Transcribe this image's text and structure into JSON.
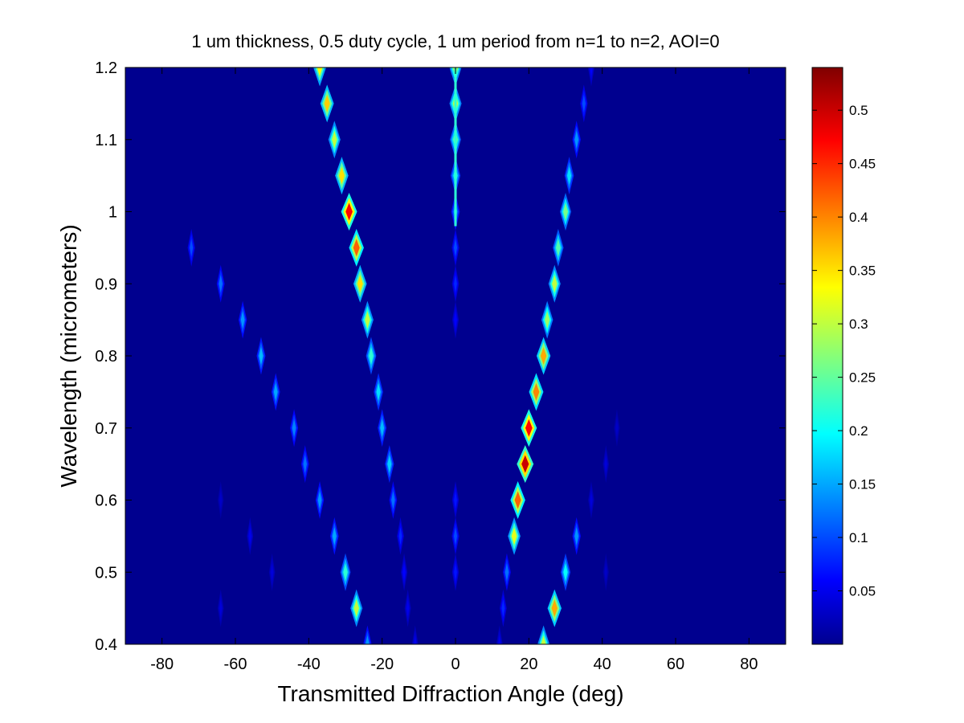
{
  "chart_data": {
    "type": "heatmap",
    "title": "1 um thickness, 0.5 duty cycle, 1 um period from n=1 to n=2, AOI=0",
    "xlabel": "Transmitted Diffraction Angle (deg)",
    "ylabel": "Wavelength (micrometers)",
    "xlim": [
      -90,
      90
    ],
    "ylim": [
      0.4,
      1.2
    ],
    "xticks": [
      -80,
      -60,
      -40,
      -20,
      0,
      20,
      40,
      60,
      80
    ],
    "yticks": [
      "0.4",
      "0.5",
      "0.6",
      "0.7",
      "0.8",
      "0.9",
      "1",
      "1.1",
      "1.2"
    ],
    "colorbar": {
      "colormap": "jet",
      "range": [
        0,
        0.54
      ],
      "ticks": [
        "0.05",
        "0.1",
        "0.15",
        "0.2",
        "0.25",
        "0.3",
        "0.35",
        "0.4",
        "0.45",
        "0.5"
      ]
    },
    "background_color": "#00008f",
    "series": [
      {
        "order": "0",
        "points": [
          {
            "wavelength": 1.2,
            "angle": 0,
            "value": 0.3
          },
          {
            "wavelength": 1.15,
            "angle": 0,
            "value": 0.3
          },
          {
            "wavelength": 1.1,
            "angle": 0,
            "value": 0.25
          },
          {
            "wavelength": 1.05,
            "angle": 0,
            "value": 0.2
          },
          {
            "wavelength": 1.0,
            "angle": 0,
            "value": 0.15
          },
          {
            "wavelength": 0.95,
            "angle": 0,
            "value": 0.1
          },
          {
            "wavelength": 0.9,
            "angle": 0,
            "value": 0.08
          },
          {
            "wavelength": 0.85,
            "angle": 0,
            "value": 0.06
          },
          {
            "wavelength": 0.6,
            "angle": 0,
            "value": 0.07
          },
          {
            "wavelength": 0.55,
            "angle": 0,
            "value": 0.1
          },
          {
            "wavelength": 0.5,
            "angle": 0,
            "value": 0.07
          }
        ]
      },
      {
        "order": "-1",
        "points": [
          {
            "wavelength": 1.2,
            "angle": -37,
            "value": 0.33
          },
          {
            "wavelength": 1.15,
            "angle": -35,
            "value": 0.36
          },
          {
            "wavelength": 1.1,
            "angle": -33,
            "value": 0.3
          },
          {
            "wavelength": 1.05,
            "angle": -31,
            "value": 0.35
          },
          {
            "wavelength": 1.0,
            "angle": -29,
            "value": 0.47
          },
          {
            "wavelength": 0.95,
            "angle": -27,
            "value": 0.42
          },
          {
            "wavelength": 0.9,
            "angle": -26,
            "value": 0.35
          },
          {
            "wavelength": 0.85,
            "angle": -24,
            "value": 0.3
          },
          {
            "wavelength": 0.8,
            "angle": -23,
            "value": 0.22
          },
          {
            "wavelength": 0.75,
            "angle": -21,
            "value": 0.18
          },
          {
            "wavelength": 0.7,
            "angle": -20,
            "value": 0.16
          },
          {
            "wavelength": 0.65,
            "angle": -18,
            "value": 0.17
          },
          {
            "wavelength": 0.6,
            "angle": -17,
            "value": 0.12
          },
          {
            "wavelength": 0.55,
            "angle": -15,
            "value": 0.08
          },
          {
            "wavelength": 0.5,
            "angle": -14,
            "value": 0.06
          },
          {
            "wavelength": 0.45,
            "angle": -13,
            "value": 0.05
          },
          {
            "wavelength": 0.4,
            "angle": -11,
            "value": 0.05
          }
        ]
      },
      {
        "order": "+1",
        "points": [
          {
            "wavelength": 1.2,
            "angle": 37,
            "value": 0.06
          },
          {
            "wavelength": 1.15,
            "angle": 35,
            "value": 0.1
          },
          {
            "wavelength": 1.1,
            "angle": 33,
            "value": 0.14
          },
          {
            "wavelength": 1.05,
            "angle": 31,
            "value": 0.18
          },
          {
            "wavelength": 1.0,
            "angle": 30,
            "value": 0.26
          },
          {
            "wavelength": 0.95,
            "angle": 28,
            "value": 0.24
          },
          {
            "wavelength": 0.9,
            "angle": 27,
            "value": 0.3
          },
          {
            "wavelength": 0.85,
            "angle": 25,
            "value": 0.28
          },
          {
            "wavelength": 0.8,
            "angle": 24,
            "value": 0.38
          },
          {
            "wavelength": 0.75,
            "angle": 22,
            "value": 0.4
          },
          {
            "wavelength": 0.7,
            "angle": 20,
            "value": 0.47
          },
          {
            "wavelength": 0.65,
            "angle": 19,
            "value": 0.5
          },
          {
            "wavelength": 0.6,
            "angle": 17,
            "value": 0.42
          },
          {
            "wavelength": 0.55,
            "angle": 16,
            "value": 0.32
          },
          {
            "wavelength": 0.5,
            "angle": 14,
            "value": 0.12
          },
          {
            "wavelength": 0.45,
            "angle": 13,
            "value": 0.08
          },
          {
            "wavelength": 0.4,
            "angle": 12,
            "value": 0.05
          }
        ]
      },
      {
        "order": "-2",
        "points": [
          {
            "wavelength": 0.95,
            "angle": -72,
            "value": 0.1
          },
          {
            "wavelength": 0.9,
            "angle": -64,
            "value": 0.12
          },
          {
            "wavelength": 0.85,
            "angle": -58,
            "value": 0.14
          },
          {
            "wavelength": 0.8,
            "angle": -53,
            "value": 0.16
          },
          {
            "wavelength": 0.75,
            "angle": -49,
            "value": 0.15
          },
          {
            "wavelength": 0.7,
            "angle": -44,
            "value": 0.13
          },
          {
            "wavelength": 0.65,
            "angle": -41,
            "value": 0.12
          },
          {
            "wavelength": 0.6,
            "angle": -37,
            "value": 0.14
          },
          {
            "wavelength": 0.55,
            "angle": -33,
            "value": 0.15
          },
          {
            "wavelength": 0.5,
            "angle": -30,
            "value": 0.22
          },
          {
            "wavelength": 0.45,
            "angle": -27,
            "value": 0.3
          },
          {
            "wavelength": 0.4,
            "angle": -24,
            "value": 0.14
          }
        ]
      },
      {
        "order": "+2",
        "points": [
          {
            "wavelength": 0.55,
            "angle": 33,
            "value": 0.14
          },
          {
            "wavelength": 0.5,
            "angle": 30,
            "value": 0.2
          },
          {
            "wavelength": 0.45,
            "angle": 27,
            "value": 0.38
          },
          {
            "wavelength": 0.4,
            "angle": 24,
            "value": 0.3
          }
        ]
      },
      {
        "order": "weak",
        "points": [
          {
            "wavelength": 0.45,
            "angle": -64,
            "value": 0.04
          },
          {
            "wavelength": 0.5,
            "angle": -50,
            "value": 0.04
          },
          {
            "wavelength": 0.55,
            "angle": -56,
            "value": 0.05
          },
          {
            "wavelength": 0.6,
            "angle": -64,
            "value": 0.03
          },
          {
            "wavelength": 0.6,
            "angle": 37,
            "value": 0.04
          },
          {
            "wavelength": 0.65,
            "angle": 41,
            "value": 0.04
          },
          {
            "wavelength": 0.7,
            "angle": 44,
            "value": 0.03
          },
          {
            "wavelength": 0.5,
            "angle": 41,
            "value": 0.03
          }
        ]
      }
    ]
  }
}
